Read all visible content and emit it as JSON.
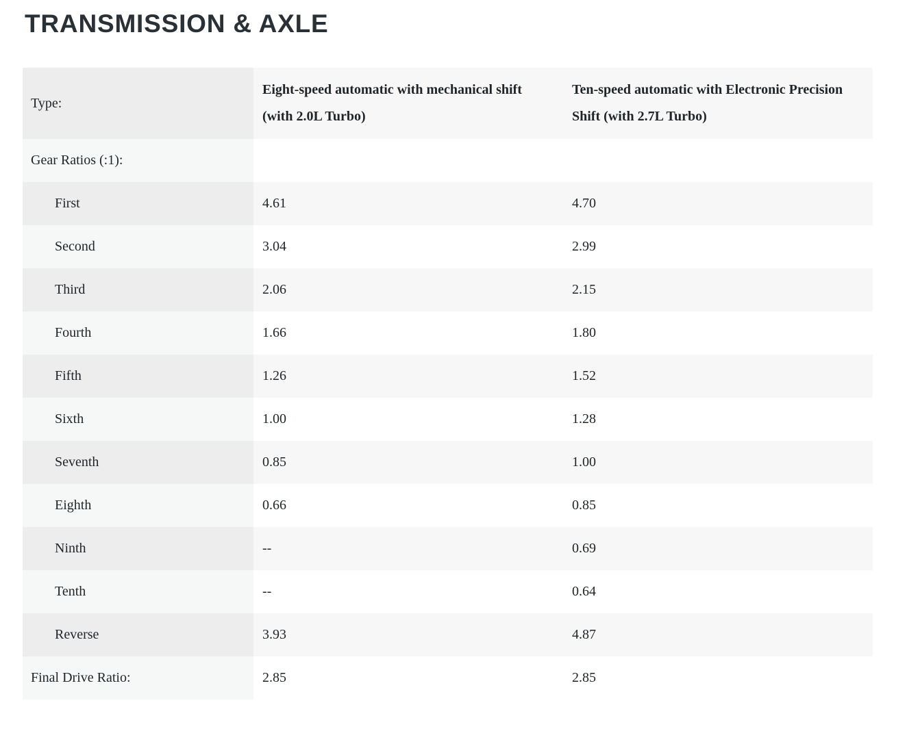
{
  "section": {
    "title": "TRANSMISSION & AXLE"
  },
  "table": {
    "columns": {
      "label_header": "Type:",
      "col1_header": "Eight-speed automatic with mechanical shift (with 2.0L Turbo)",
      "col2_header": "Ten-speed automatic with Electronic Precision Shift (with 2.7L Turbo)"
    },
    "rows": [
      {
        "label": "Gear Ratios (:1):",
        "indent": false,
        "col1": "",
        "col2": ""
      },
      {
        "label": "First",
        "indent": true,
        "col1": "4.61",
        "col2": "4.70"
      },
      {
        "label": "Second",
        "indent": true,
        "col1": "3.04",
        "col2": "2.99"
      },
      {
        "label": "Third",
        "indent": true,
        "col1": "2.06",
        "col2": "2.15"
      },
      {
        "label": "Fourth",
        "indent": true,
        "col1": "1.66",
        "col2": "1.80"
      },
      {
        "label": "Fifth",
        "indent": true,
        "col1": "1.26",
        "col2": "1.52"
      },
      {
        "label": "Sixth",
        "indent": true,
        "col1": "1.00",
        "col2": "1.28"
      },
      {
        "label": "Seventh",
        "indent": true,
        "col1": "0.85",
        "col2": "1.00"
      },
      {
        "label": "Eighth",
        "indent": true,
        "col1": "0.66",
        "col2": "0.85"
      },
      {
        "label": "Ninth",
        "indent": true,
        "col1": "--",
        "col2": "0.69"
      },
      {
        "label": "Tenth",
        "indent": true,
        "col1": "--",
        "col2": "0.64"
      },
      {
        "label": "Reverse",
        "indent": true,
        "col1": "3.93",
        "col2": "4.87"
      },
      {
        "label": "Final Drive Ratio:",
        "indent": false,
        "col1": "2.85",
        "col2": "2.85"
      }
    ]
  },
  "colors": {
    "title_text": "#2a3136",
    "body_text": "#1f2428",
    "row_stripe": "#f7f7f7",
    "label_column_stripe": "#ededee",
    "label_column_plain": "#f6f7f7",
    "row_plain": "#ffffff",
    "page_background": "#ffffff"
  }
}
